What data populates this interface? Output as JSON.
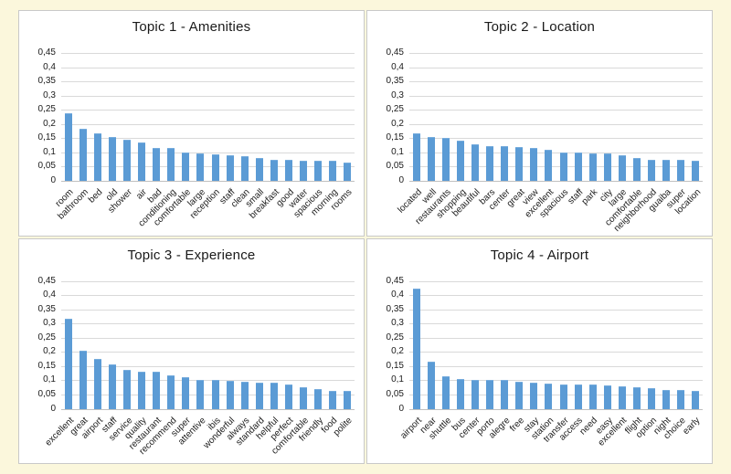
{
  "page": {
    "background_color": "#FBF7DC",
    "panel_background": "#FFFFFF",
    "panel_border_color": "#C9C9C9"
  },
  "chart_style": {
    "bar_color": "#5B9BD5",
    "gridline_color": "#D9D9D9",
    "axis_color": "#C0C0C0",
    "text_color": "#1A1A1A",
    "decimal_separator": "comma"
  },
  "y_axis": {
    "tick_labels": [
      "0,45",
      "0,4",
      "0,35",
      "0,3",
      "0,25",
      "0,2",
      "0,15",
      "0,1",
      "0,05",
      "0"
    ],
    "tick_values": [
      0.45,
      0.4,
      0.35,
      0.3,
      0.25,
      0.2,
      0.15,
      0.1,
      0.05,
      0
    ],
    "max": 0.45
  },
  "chart_data": [
    {
      "type": "bar",
      "title": "Topic 1 - Amenities",
      "categories": [
        "room",
        "bathroom",
        "bed",
        "old",
        "shower",
        "air",
        "bad",
        "conditioning",
        "comfortable",
        "large",
        "reception",
        "staff",
        "clean",
        "small",
        "breakfast",
        "good",
        "water",
        "spacious",
        "morning",
        "rooms"
      ],
      "values": [
        0.235,
        0.179,
        0.165,
        0.151,
        0.142,
        0.131,
        0.113,
        0.113,
        0.097,
        0.093,
        0.09,
        0.087,
        0.084,
        0.078,
        0.072,
        0.072,
        0.067,
        0.067,
        0.067,
        0.061
      ],
      "xlabel": "",
      "ylabel": "",
      "ylim": [
        0,
        0.45
      ],
      "grid": true,
      "legend": false
    },
    {
      "type": "bar",
      "title": "Topic 2 - Location",
      "categories": [
        "located",
        "well",
        "restaurants",
        "shopping",
        "beautiful",
        "bars",
        "center",
        "great",
        "view",
        "excellent",
        "spacious",
        "staff",
        "park",
        "city",
        "large",
        "comfortable",
        "neighborhood",
        "guaiba",
        "super",
        "location"
      ],
      "values": [
        0.163,
        0.15,
        0.147,
        0.138,
        0.125,
        0.119,
        0.118,
        0.116,
        0.113,
        0.107,
        0.097,
        0.096,
        0.094,
        0.092,
        0.086,
        0.078,
        0.07,
        0.07,
        0.07,
        0.066
      ],
      "xlabel": "",
      "ylabel": "",
      "ylim": [
        0,
        0.45
      ],
      "grid": true,
      "legend": false
    },
    {
      "type": "bar",
      "title": "Topic 3 - Experience",
      "categories": [
        "excellent",
        "great",
        "airport",
        "staff",
        "service",
        "quality",
        "restaurant",
        "recommend",
        "super",
        "attentive",
        "ibis",
        "wonderful",
        "always",
        "standard",
        "helpful",
        "perfect",
        "comfortable",
        "friendly",
        "food",
        "polite"
      ],
      "values": [
        0.315,
        0.202,
        0.172,
        0.155,
        0.136,
        0.13,
        0.127,
        0.117,
        0.108,
        0.099,
        0.099,
        0.096,
        0.094,
        0.091,
        0.091,
        0.085,
        0.074,
        0.069,
        0.06,
        0.06
      ],
      "xlabel": "",
      "ylabel": "",
      "ylim": [
        0,
        0.45
      ],
      "grid": true,
      "legend": false
    },
    {
      "type": "bar",
      "title": "Topic 4 - Airport",
      "categories": [
        "airport",
        "near",
        "shuttle",
        "bus",
        "center",
        "porto",
        "alegre",
        "free",
        "stay",
        "station",
        "transfer",
        "access",
        "need",
        "easy",
        "excellent",
        "flight",
        "option",
        "night",
        "choice",
        "early"
      ],
      "values": [
        0.422,
        0.165,
        0.113,
        0.104,
        0.101,
        0.101,
        0.099,
        0.092,
        0.09,
        0.088,
        0.085,
        0.082,
        0.082,
        0.08,
        0.078,
        0.073,
        0.07,
        0.065,
        0.065,
        0.06
      ],
      "xlabel": "",
      "ylabel": "",
      "ylim": [
        0,
        0.45
      ],
      "grid": true,
      "legend": false
    }
  ]
}
